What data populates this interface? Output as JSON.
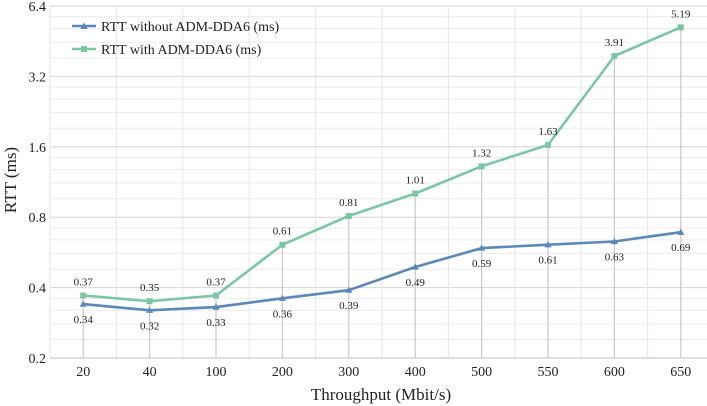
{
  "chart_data": {
    "type": "line",
    "title": "",
    "xlabel": "Throughput (Mbit/s)",
    "ylabel": "RTT (ms)",
    "categories": [
      "20",
      "40",
      "100",
      "200",
      "300",
      "400",
      "500",
      "550",
      "600",
      "650"
    ],
    "y_scale": "log2",
    "ylim": [
      0.2,
      6.4
    ],
    "y_ticks": [
      "0.2",
      "0.4",
      "0.8",
      "1.6",
      "3.2",
      "6.4"
    ],
    "grid": true,
    "legend_position": "top-left",
    "series": [
      {
        "name": "RTT without ADM-DDA6 (ms)",
        "color": "#5b88b8",
        "marker": "triangle",
        "values": [
          0.34,
          0.32,
          0.33,
          0.36,
          0.39,
          0.49,
          0.59,
          0.61,
          0.63,
          0.69
        ],
        "labels": [
          "0.34",
          "0.32",
          "0.33",
          "0.36",
          "0.39",
          "0.49",
          "0.59",
          "0.61",
          "0.63",
          "0.69"
        ]
      },
      {
        "name": "RTT with ADM-DDA6 (ms)",
        "color": "#7cc6a6",
        "marker": "square",
        "values": [
          0.37,
          0.35,
          0.37,
          0.61,
          0.81,
          1.01,
          1.32,
          1.63,
          3.91,
          5.19
        ],
        "labels": [
          "0.37",
          "0.35",
          "0.37",
          "0.61",
          "0.81",
          "1.01",
          "1.32",
          "1.63",
          "3.91",
          "5.19"
        ]
      }
    ]
  }
}
